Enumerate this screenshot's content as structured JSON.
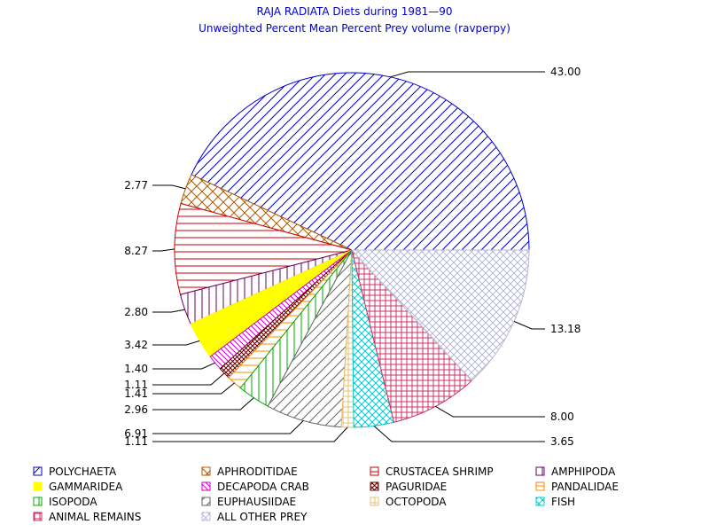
{
  "chart_data": {
    "type": "pie",
    "title": "RAJA RADIATA Diets during 1981—90",
    "subtitle": "Unweighted Percent Mean Percent Prey  volume (ravperpy)",
    "slices": [
      {
        "name": "POLYCHAETA",
        "value": 43.0,
        "label": "43.00",
        "color": "#0000cc",
        "pattern": "diag-right"
      },
      {
        "name": "APHRODITIDAE",
        "value": 2.77,
        "label": "2.77",
        "color": "#b05a00",
        "pattern": "crosshatch"
      },
      {
        "name": "CRUSTACEA SHRIMP",
        "value": 8.27,
        "label": "8.27",
        "color": "#cc0000",
        "pattern": "horizontal"
      },
      {
        "name": "AMPHIPODA",
        "value": 2.8,
        "label": "2.80",
        "color": "#660066",
        "pattern": "vertical"
      },
      {
        "name": "GAMMARIDEA",
        "value": 3.42,
        "label": "3.42",
        "color": "#ffff00",
        "pattern": "solid"
      },
      {
        "name": "DECAPODA CRAB",
        "value": 1.4,
        "label": "1.40",
        "color": "#cc00cc",
        "pattern": "diag-left"
      },
      {
        "name": "PAGURIDAE",
        "value": 1.11,
        "label": "1.11",
        "color": "#660000",
        "pattern": "crosshatch-dense"
      },
      {
        "name": "PANDALIDAE",
        "value": 1.41,
        "label": "1.41",
        "color": "#ff8800",
        "pattern": "horizontal"
      },
      {
        "name": "ISOPODA",
        "value": 2.96,
        "label": "2.96",
        "color": "#00aa00",
        "pattern": "vertical"
      },
      {
        "name": "EUPHAUSIIDAE",
        "value": 6.91,
        "label": "6.91",
        "color": "#666666",
        "pattern": "diag-right"
      },
      {
        "name": "OCTOPODA",
        "value": 1.11,
        "label": "1.11",
        "color": "#e6c070",
        "pattern": "grid"
      },
      {
        "name": "FISH",
        "value": 3.65,
        "label": "3.65",
        "color": "#00cccc",
        "pattern": "diag-cross"
      },
      {
        "name": "ANIMAL REMAINS",
        "value": 8.0,
        "label": "8.00",
        "color": "#cc3366",
        "pattern": "grid"
      },
      {
        "name": "ALL OTHER PREY",
        "value": 13.18,
        "label": "13.18",
        "color": "#b8b8d8",
        "pattern": "diag-cross"
      }
    ],
    "legend": {
      "placement": "bottom",
      "columns": 4
    }
  }
}
